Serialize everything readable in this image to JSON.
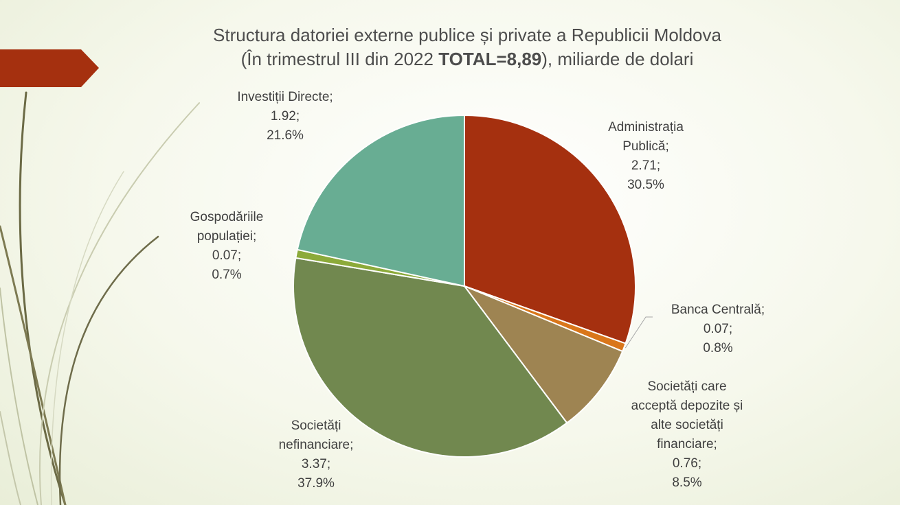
{
  "title": {
    "line1": "Structura datoriei externe publice și private a Republicii Moldova",
    "line2_pre": "(În trimestrul III din 2022 ",
    "line2_bold": "TOTAL=8,89",
    "line2_post": "), miliarde de dolari"
  },
  "chart_data": {
    "type": "pie",
    "title": "Structura datoriei externe publice și private a Republicii Moldova (În trimestrul III din 2022 TOTAL=8,89), miliarde de dolari",
    "categories": [
      "Administrația Publică",
      "Banca Centrală",
      "Societăți care acceptă depozite și alte societăți financiare",
      "Societăți nefinanciare",
      "Gospodăriile populației",
      "Investiții Directe"
    ],
    "values": [
      2.71,
      0.07,
      0.76,
      3.37,
      0.07,
      1.92
    ],
    "percents": [
      "30.5%",
      "0.8%",
      "8.5%",
      "37.9%",
      "0.7%",
      "21.6%"
    ],
    "colors": [
      "#a5300f",
      "#d9761a",
      "#9e8452",
      "#71884f",
      "#8caa3a",
      "#68ad93"
    ],
    "labels": [
      {
        "lines": [
          "Administrația",
          "Publică;",
          "2.71;",
          "30.5%"
        ]
      },
      {
        "lines": [
          "Banca Centrală;",
          "0.07;",
          "0.8%"
        ]
      },
      {
        "lines": [
          "Societăți care",
          "acceptă depozite și",
          "alte societăți",
          "financiare;",
          "0.76;",
          "8.5%"
        ]
      },
      {
        "lines": [
          "Societăți",
          "nefinanciare;",
          "3.37;",
          "37.9%"
        ]
      },
      {
        "lines": [
          "Gospodăriile",
          "populației;",
          "0.07;",
          "0.7%"
        ]
      },
      {
        "lines": [
          "Investiții Directe;",
          "1.92;",
          "21.6%"
        ]
      }
    ],
    "legend": "none"
  }
}
